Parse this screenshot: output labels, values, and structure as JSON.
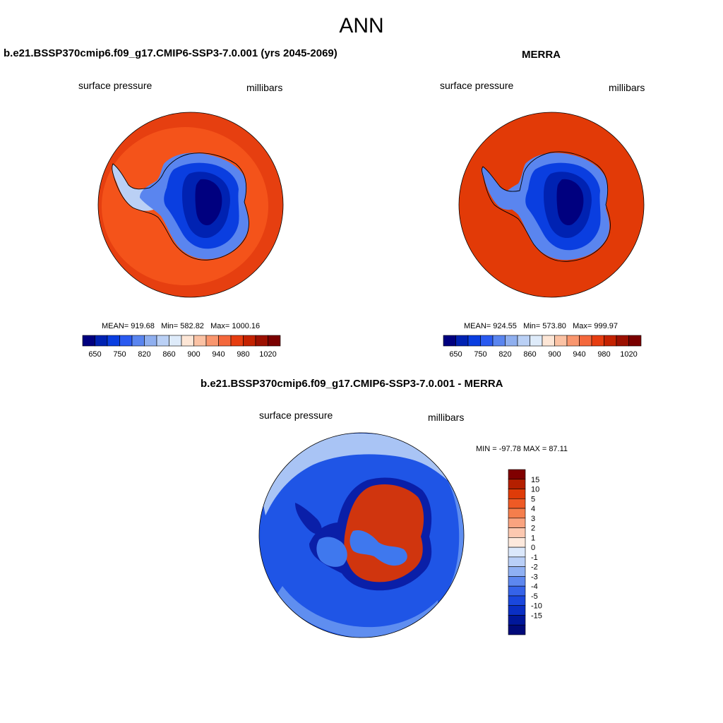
{
  "page": {
    "title": "ANN"
  },
  "panels": [
    {
      "id": "model",
      "title": "b.e21.BSSP370cmip6.f09_g17.CMIP6-SSP3-7.0.001 (yrs 2045-2069)",
      "left_label": "surface pressure",
      "right_label": "millibars",
      "stats": {
        "mean": "MEAN= 919.68",
        "min": "Min= 582.82",
        "max": "Max= 1000.16"
      }
    },
    {
      "id": "obs",
      "title": "MERRA",
      "left_label": "surface pressure",
      "right_label": "millibars",
      "stats": {
        "mean": "MEAN= 924.55",
        "min": "Min= 573.80",
        "max": "Max= 999.97"
      }
    },
    {
      "id": "diff",
      "title": "b.e21.BSSP370cmip6.f09_g17.CMIP6-SSP3-7.0.001 - MERRA",
      "left_label": "surface pressure",
      "right_label": "millibars",
      "minmax": "MIN = -97.78 MAX =  87.11"
    }
  ],
  "colorbars": {
    "horizontal": {
      "colors": [
        "#00007f",
        "#0022b2",
        "#0a3ee0",
        "#2a5af0",
        "#5a85ef",
        "#8fafef",
        "#bad0f5",
        "#deebfa",
        "#fde6d6",
        "#fbc2a4",
        "#f9966e",
        "#f4683c",
        "#e63d10",
        "#c42200",
        "#9c1000",
        "#7a0000"
      ],
      "tick_labels": [
        "650",
        "750",
        "820",
        "860",
        "900",
        "940",
        "980",
        "1020"
      ]
    },
    "vertical": {
      "colors": [
        "#800000",
        "#b41f00",
        "#df3b08",
        "#ef5a25",
        "#f57e4c",
        "#f9a37f",
        "#fcc8b0",
        "#fde9dd",
        "#dbe8fb",
        "#b9cff7",
        "#8fb0f3",
        "#5d87ef",
        "#3563e9",
        "#1a47dd",
        "#0a2fc4",
        "#00179a",
        "#000a7a"
      ],
      "tick_labels": [
        "15",
        "10",
        "5",
        "4",
        "3",
        "2",
        "1",
        "0",
        "-1",
        "-2",
        "-3",
        "-4",
        "-5",
        "-10",
        "-15"
      ]
    }
  },
  "map_colors": {
    "ocean_model": "#e63f10",
    "ocean_ring_model": "#f4531a",
    "ocean_obs": "#e23a07",
    "ice_shelf": "#bad0f5",
    "ice_edge": "#5a85ef",
    "ice_mid": "#0a3ee0",
    "ice_core": "#0022b2",
    "ice_deep": "#00007f",
    "diff_ocean": "#1f55e6",
    "diff_ocean_light": "#5f8ef0",
    "diff_ocean_pale": "#a9c4f5",
    "diff_coast": "#0a1fa8",
    "diff_land_pos": "#d0350e",
    "diff_land_neg": "#3f78ee"
  }
}
